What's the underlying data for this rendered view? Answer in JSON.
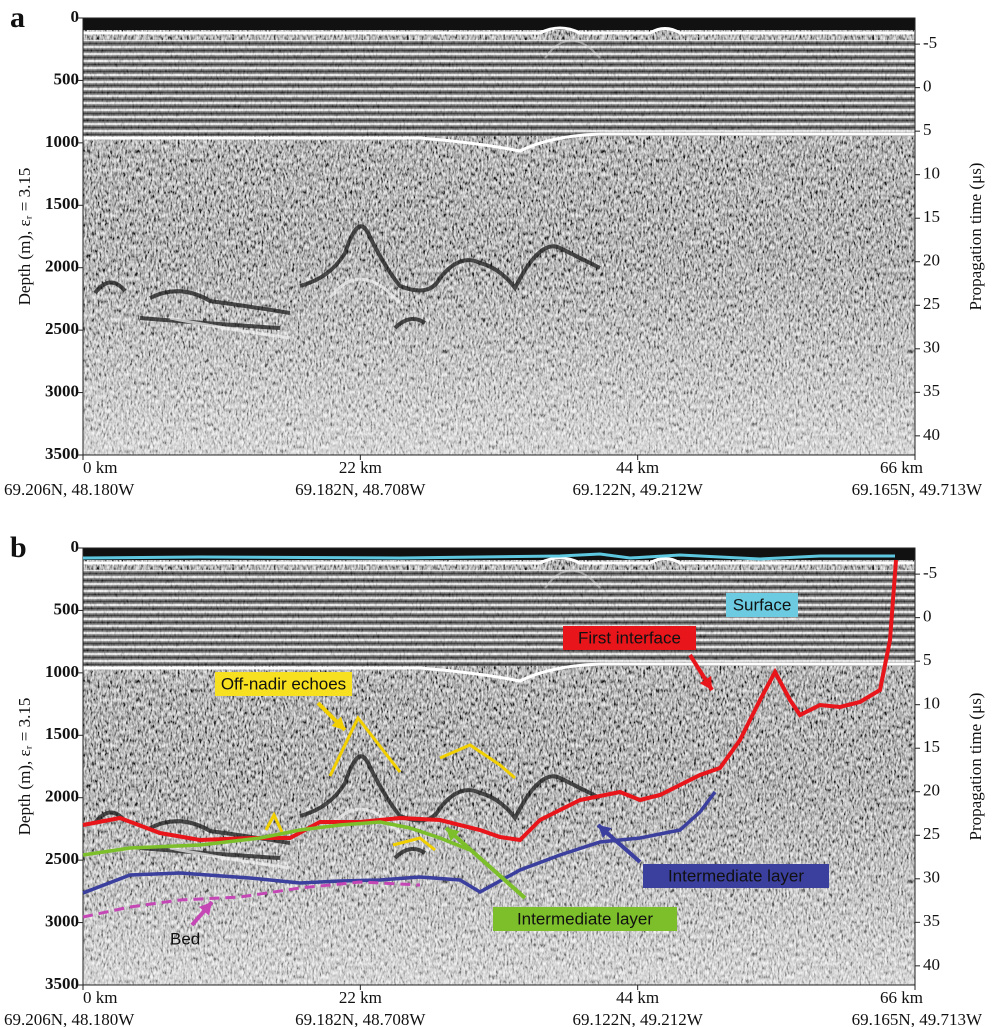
{
  "figure": {
    "panels": [
      {
        "label": "a",
        "y_axis_label": "Depth (m), εᵣ = 3.15",
        "y2_axis_label": "Propagation time (μs)",
        "ylim": [
          0,
          3500
        ],
        "yticks": [
          0,
          500,
          1000,
          1500,
          2000,
          2500,
          3000,
          3500
        ],
        "y2lim": [
          -8,
          42.2
        ],
        "y2ticks": [
          -5,
          0,
          5,
          10,
          15,
          20,
          25,
          30,
          35,
          40
        ],
        "xlim": [
          0,
          66
        ],
        "xticks": [
          {
            "value": 0,
            "label": "0 km"
          },
          {
            "value": 22,
            "label": "22 km"
          },
          {
            "value": 44,
            "label": "44 km"
          },
          {
            "value": 66,
            "label": "66 km"
          }
        ],
        "coordinates": [
          "69.206N, 48.180W",
          "69.182N, 48.708W",
          "69.122N, 49.212W",
          "69.165N, 49.713W"
        ]
      },
      {
        "label": "b",
        "y_axis_label": "Depth (m), εᵣ = 3.15",
        "y2_axis_label": "Propagation time (μs)",
        "ylim": [
          0,
          3500
        ],
        "yticks": [
          0,
          500,
          1000,
          1500,
          2000,
          2500,
          3000,
          3500
        ],
        "y2lim": [
          -8,
          42.2
        ],
        "y2ticks": [
          -5,
          0,
          5,
          10,
          15,
          20,
          25,
          30,
          35,
          40
        ],
        "xlim": [
          0,
          66
        ],
        "xticks": [
          {
            "value": 0,
            "label": "0 km"
          },
          {
            "value": 22,
            "label": "22 km"
          },
          {
            "value": 44,
            "label": "44 km"
          },
          {
            "value": 66,
            "label": "66 km"
          }
        ],
        "coordinates": [
          "69.206N, 48.180W",
          "69.182N, 48.708W",
          "69.122N, 49.212W",
          "69.165N, 49.713W"
        ],
        "annotations": {
          "surface": "Surface",
          "first_interface": "First interface",
          "off_nadir": "Off-nadir echoes",
          "intermediate_blue": "Intermediate layer",
          "intermediate_green": "Intermediate layer",
          "bed": "Bed"
        }
      }
    ]
  }
}
